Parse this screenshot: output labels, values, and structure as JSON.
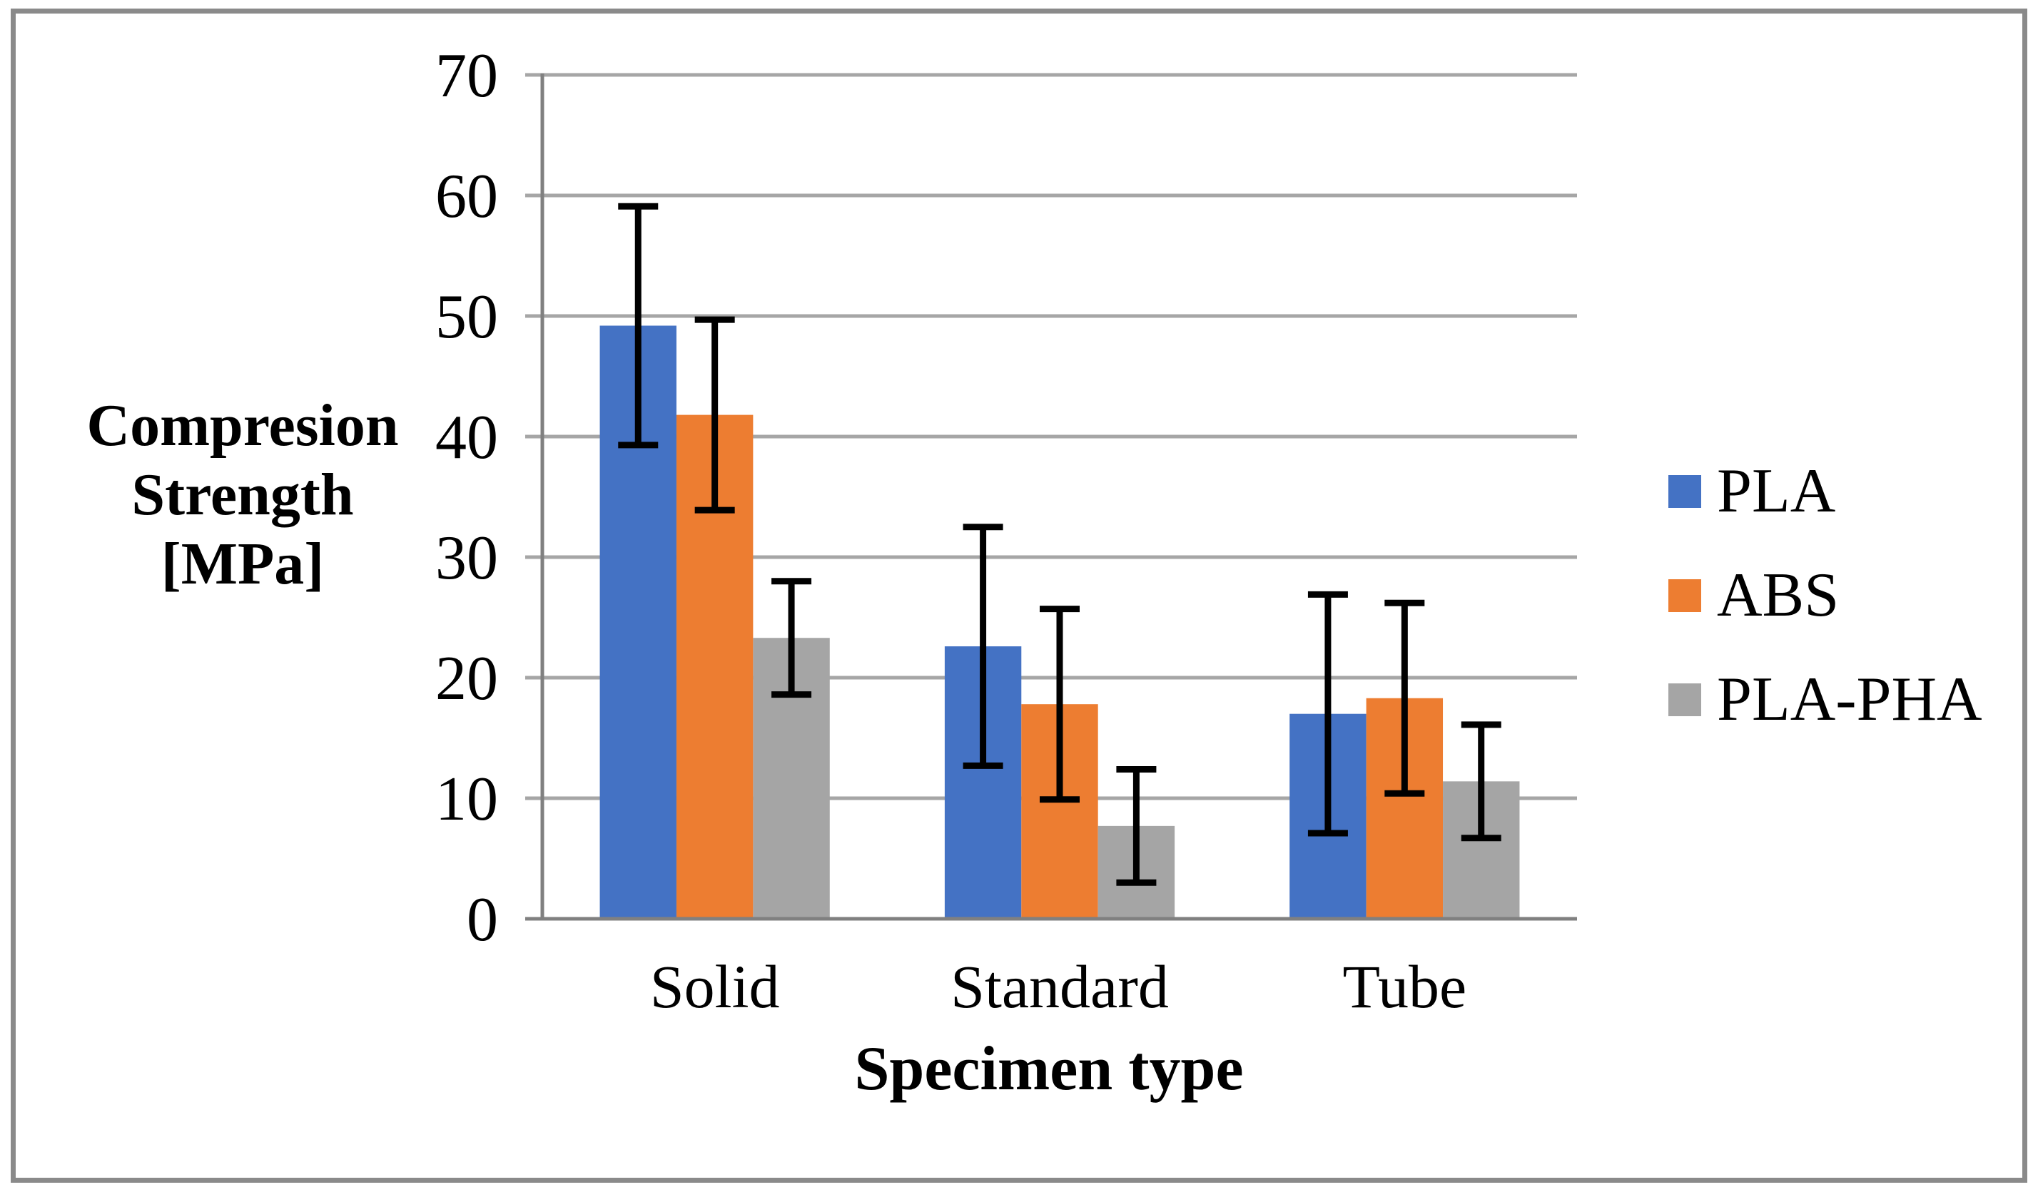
{
  "chart_data": {
    "type": "bar",
    "title": "",
    "categories": [
      "Solid",
      "Standard",
      "Tube"
    ],
    "series": [
      {
        "name": "PLA",
        "color": "#4472C4",
        "values": [
          49.2,
          22.6,
          17.0
        ],
        "error_plus_minus": 9.9
      },
      {
        "name": "ABS",
        "color": "#ED7D31",
        "values": [
          41.8,
          17.8,
          18.3
        ],
        "error_plus_minus": 7.9
      },
      {
        "name": "PLA-PHA",
        "color": "#A5A5A5",
        "values": [
          23.3,
          7.7,
          11.4
        ],
        "error_plus_minus": 4.7
      }
    ],
    "xlabel": "Specimen type",
    "ylabel": "Compresion Strength [MPa]",
    "ylabel_lines": [
      "Compresion",
      "Strength",
      "[MPa]"
    ],
    "ylim": [
      0,
      70
    ],
    "ytick_step": 10,
    "yticks": [
      0,
      10,
      20,
      30,
      40,
      50,
      60,
      70
    ],
    "ytick_labels": [
      "0",
      "10",
      "20",
      "30",
      "40",
      "50",
      "60",
      "70"
    ],
    "grid": "horizontal",
    "legend_position": "right",
    "error_bars": true,
    "bar_gap_ratio": 1.5
  },
  "colors": {
    "gridline": "#A6A6A6",
    "axis": "#808080",
    "frame": "#8A8A8A",
    "error_bar": "#000000",
    "text": "#000000",
    "background": "#FFFFFF"
  }
}
